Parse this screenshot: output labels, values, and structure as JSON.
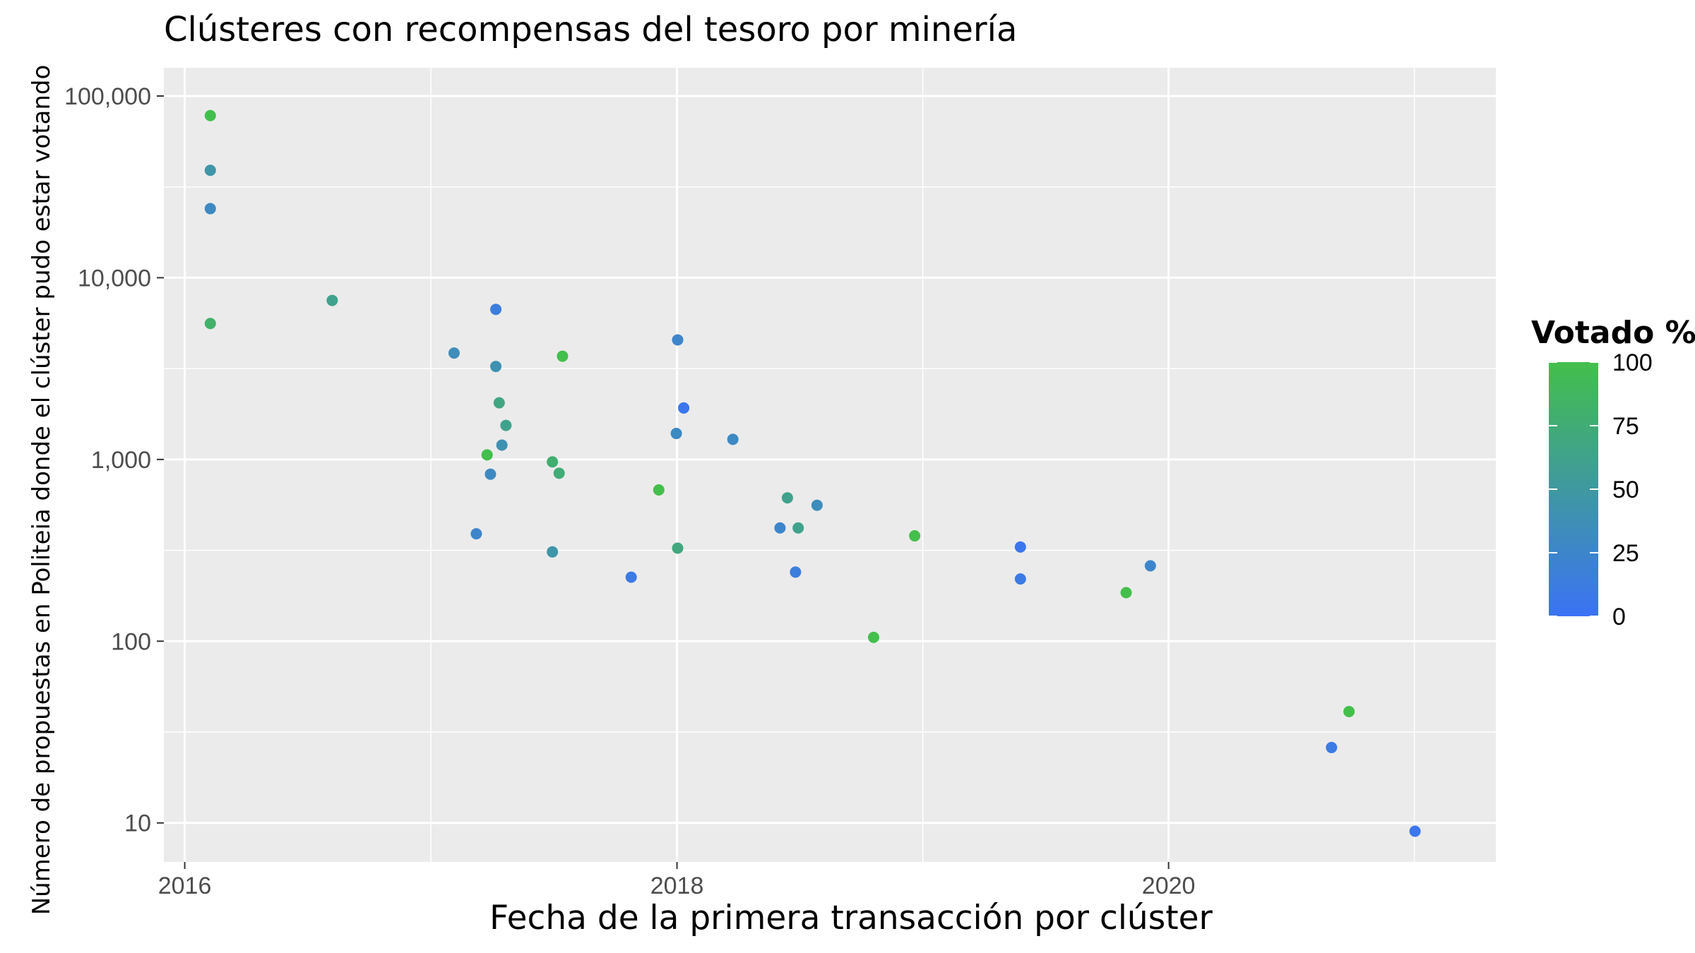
{
  "chart_data": {
    "type": "scatter",
    "title": "Clústeres con recompensas del tesoro por minería",
    "xlabel": "Fecha de la primera transacción por clúster",
    "ylabel": "Número de propuestas en Politeia donde el clúster pudo estar votando",
    "x_scale": "date",
    "y_scale": "log10",
    "xlim": [
      "2015-12-01",
      "2021-05-01"
    ],
    "ylim": [
      6.1,
      143000
    ],
    "x_ticks": [
      {
        "value": "2016-01-01",
        "label": "2016"
      },
      {
        "value": "2018-01-01",
        "label": "2018"
      },
      {
        "value": "2020-01-01",
        "label": "2020"
      }
    ],
    "y_ticks": [
      {
        "value": 10,
        "label": "10"
      },
      {
        "value": 100,
        "label": "100"
      },
      {
        "value": 1000,
        "label": "1,000"
      },
      {
        "value": 10000,
        "label": "10,000"
      },
      {
        "value": 100000,
        "label": "100,000"
      }
    ],
    "grid": true,
    "legend": {
      "title": "Votado %",
      "position": "right",
      "ticks": [
        0,
        25,
        50,
        75,
        100
      ],
      "tick_labels": [
        "0",
        "25",
        "50",
        "75",
        "100"
      ],
      "color_low": "#3b72f5",
      "color_high": "#43bf4b"
    },
    "points": [
      {
        "x": "2016-02-08",
        "y": 78000,
        "voted_pct": 100
      },
      {
        "x": "2016-02-08",
        "y": 39000,
        "voted_pct": 45
      },
      {
        "x": "2016-02-08",
        "y": 24000,
        "voted_pct": 30
      },
      {
        "x": "2016-02-08",
        "y": 5600,
        "voted_pct": 82
      },
      {
        "x": "2016-08-07",
        "y": 7500,
        "voted_pct": 62
      },
      {
        "x": "2017-02-04",
        "y": 3850,
        "voted_pct": 35
      },
      {
        "x": "2017-04-07",
        "y": 6700,
        "voted_pct": 15
      },
      {
        "x": "2017-04-07",
        "y": 3250,
        "voted_pct": 40
      },
      {
        "x": "2017-04-12",
        "y": 2050,
        "voted_pct": 68
      },
      {
        "x": "2017-04-22",
        "y": 1540,
        "voted_pct": 62
      },
      {
        "x": "2017-04-16",
        "y": 1200,
        "voted_pct": 40
      },
      {
        "x": "2017-03-25",
        "y": 1060,
        "voted_pct": 100
      },
      {
        "x": "2017-03-30",
        "y": 830,
        "voted_pct": 30
      },
      {
        "x": "2017-03-09",
        "y": 390,
        "voted_pct": 25
      },
      {
        "x": "2017-06-30",
        "y": 970,
        "voted_pct": 78
      },
      {
        "x": "2017-07-10",
        "y": 840,
        "voted_pct": 75
      },
      {
        "x": "2017-06-30",
        "y": 310,
        "voted_pct": 45
      },
      {
        "x": "2017-07-15",
        "y": 3700,
        "voted_pct": 100
      },
      {
        "x": "2017-10-25",
        "y": 225,
        "voted_pct": 10
      },
      {
        "x": "2017-12-05",
        "y": 680,
        "voted_pct": 100
      },
      {
        "x": "2018-01-02",
        "y": 4550,
        "voted_pct": 25
      },
      {
        "x": "2018-01-11",
        "y": 1920,
        "voted_pct": 5
      },
      {
        "x": "2017-12-31",
        "y": 1390,
        "voted_pct": 30
      },
      {
        "x": "2018-01-02",
        "y": 325,
        "voted_pct": 70
      },
      {
        "x": "2018-03-25",
        "y": 1290,
        "voted_pct": 30
      },
      {
        "x": "2018-06-03",
        "y": 420,
        "voted_pct": 25
      },
      {
        "x": "2018-06-14",
        "y": 615,
        "voted_pct": 62
      },
      {
        "x": "2018-06-30",
        "y": 420,
        "voted_pct": 62
      },
      {
        "x": "2018-06-26",
        "y": 240,
        "voted_pct": 15
      },
      {
        "x": "2018-07-28",
        "y": 560,
        "voted_pct": 35
      },
      {
        "x": "2018-10-20",
        "y": 105,
        "voted_pct": 100
      },
      {
        "x": "2018-12-20",
        "y": 380,
        "voted_pct": 100
      },
      {
        "x": "2019-05-26",
        "y": 330,
        "voted_pct": 5
      },
      {
        "x": "2019-05-26",
        "y": 220,
        "voted_pct": 10
      },
      {
        "x": "2019-10-30",
        "y": 185,
        "voted_pct": 100
      },
      {
        "x": "2019-12-05",
        "y": 260,
        "voted_pct": 25
      },
      {
        "x": "2020-08-30",
        "y": 26,
        "voted_pct": 10
      },
      {
        "x": "2020-09-25",
        "y": 41,
        "voted_pct": 100
      },
      {
        "x": "2021-01-01",
        "y": 9,
        "voted_pct": 5
      }
    ]
  }
}
